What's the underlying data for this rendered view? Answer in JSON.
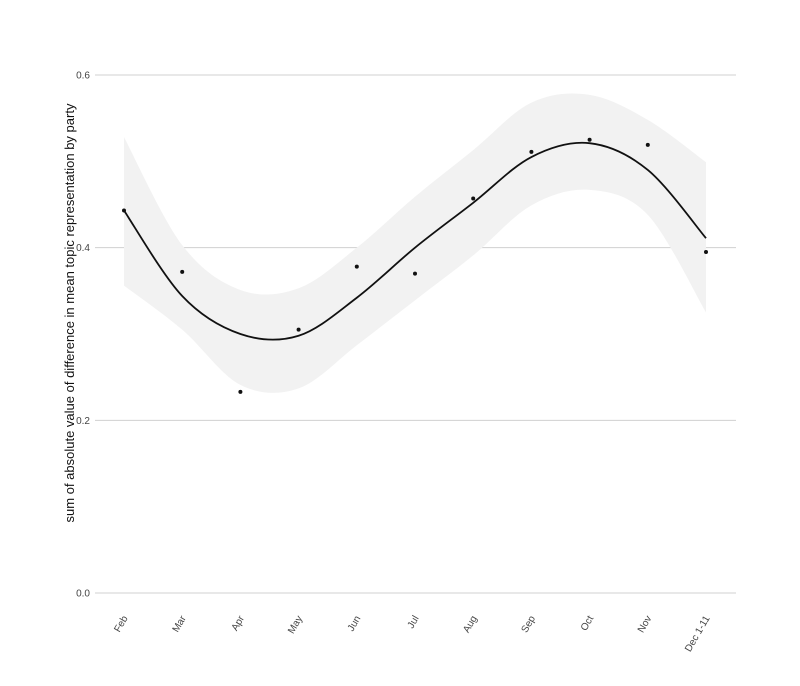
{
  "chart_data": {
    "type": "scatter",
    "y_label": "sum of absolute value of difference in mean topic representation by party",
    "categories": [
      "Feb",
      "Mar",
      "Apr",
      "May",
      "Jun",
      "Jul",
      "Aug",
      "Sep",
      "Oct",
      "Nov",
      "Dec 1-11"
    ],
    "values": [
      0.443,
      0.372,
      0.233,
      0.305,
      0.378,
      0.37,
      0.457,
      0.511,
      0.525,
      0.519,
      0.395
    ],
    "color": "#111111",
    "smooth": {
      "color": "#111111",
      "values": [
        0.443,
        0.344,
        0.3,
        0.298,
        0.342,
        0.4,
        0.452,
        0.505,
        0.521,
        0.49,
        0.411
      ]
    },
    "band": {
      "color": "#f2f2f2",
      "upper": [
        0.528,
        0.403,
        0.351,
        0.353,
        0.4,
        0.459,
        0.513,
        0.568,
        0.577,
        0.548,
        0.499
      ],
      "lower": [
        0.356,
        0.305,
        0.241,
        0.237,
        0.287,
        0.339,
        0.391,
        0.449,
        0.467,
        0.438,
        0.325
      ]
    },
    "ylim": [
      0,
      0.6
    ],
    "yticks": [
      {
        "value": 0,
        "label": "0.0"
      },
      0.2,
      0.4,
      0.6
    ],
    "grid": true
  }
}
